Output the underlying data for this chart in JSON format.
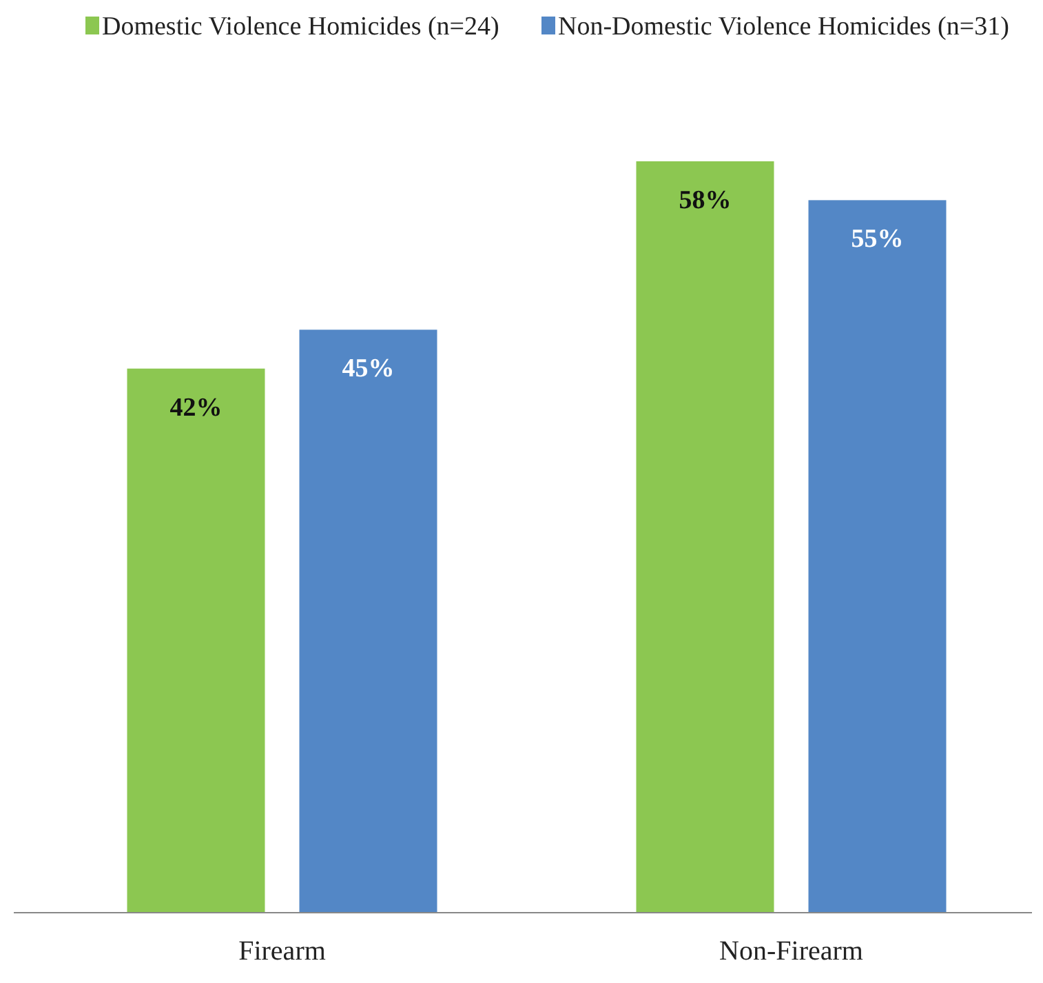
{
  "chart_data": {
    "type": "bar",
    "categories": [
      "Firearm",
      "Non-Firearm"
    ],
    "series": [
      {
        "name": "Domestic Violence Homicides (n=24)",
        "color": "#8cc751",
        "values": [
          42,
          58
        ],
        "value_labels": [
          "42%",
          "58%"
        ]
      },
      {
        "name": "Non-Domestic Violence Homicides (n=31)",
        "color": "#5387c6",
        "values": [
          45,
          55
        ],
        "value_labels": [
          "45%",
          "55%"
        ]
      }
    ],
    "legend": "top"
  }
}
